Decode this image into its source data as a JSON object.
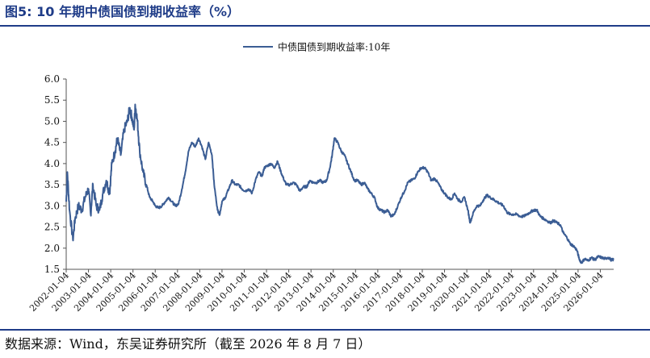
{
  "title": "图5:  10 年期中债国债到期收益率（%）",
  "source": "数据来源：Wind，东吴证券研究所（截至 2026 年 8 月 7 日）",
  "colors": {
    "accent": "#1f3c88",
    "series": "#3b5d94",
    "text": "#111111"
  },
  "chart_data": {
    "type": "line",
    "title": "",
    "xlabel": "",
    "ylabel": "",
    "ylim": [
      1.5,
      6.0
    ],
    "y_ticks": [
      "6.0",
      "5.5",
      "5.0",
      "4.5",
      "4.0",
      "3.5",
      "3.0",
      "2.5",
      "2.0",
      "1.5"
    ],
    "x_range": [
      2002.0,
      2026.6
    ],
    "x_ticks": [
      "2002-01-04",
      "2003-01-04",
      "2004-01-04",
      "2005-01-04",
      "2006-01-04",
      "2007-01-04",
      "2008-01-04",
      "2009-01-04",
      "2010-01-04",
      "2011-01-04",
      "2012-01-04",
      "2013-01-04",
      "2014-01-04",
      "2015-01-04",
      "2016-01-04",
      "2017-01-04",
      "2018-01-04",
      "2019-01-04",
      "2020-01-04",
      "2021-01-04",
      "2022-01-04",
      "2023-01-04",
      "2024-01-04",
      "2025-01-04",
      "2026-01-04"
    ],
    "grid": false,
    "legend": "top-center",
    "series": [
      {
        "name": "中债国债到期收益率:10年",
        "x": [
          2002.0,
          2002.05,
          2002.15,
          2002.3,
          2002.4,
          2002.55,
          2002.7,
          2002.85,
          2003.0,
          2003.1,
          2003.2,
          2003.35,
          2003.5,
          2003.65,
          2003.8,
          2003.95,
          2004.05,
          2004.2,
          2004.3,
          2004.45,
          2004.6,
          2004.75,
          2004.85,
          2004.95,
          2005.05,
          2005.1,
          2005.2,
          2005.3,
          2005.45,
          2005.6,
          2005.75,
          2005.9,
          2006.0,
          2006.15,
          2006.3,
          2006.45,
          2006.6,
          2006.75,
          2006.9,
          2007.05,
          2007.2,
          2007.35,
          2007.5,
          2007.65,
          2007.8,
          2007.95,
          2008.1,
          2008.25,
          2008.4,
          2008.55,
          2008.65,
          2008.8,
          2008.9,
          2009.0,
          2009.15,
          2009.3,
          2009.45,
          2009.6,
          2009.75,
          2009.9,
          2010.05,
          2010.2,
          2010.35,
          2010.5,
          2010.65,
          2010.8,
          2010.9,
          2011.05,
          2011.2,
          2011.35,
          2011.5,
          2011.65,
          2011.8,
          2011.9,
          2012.05,
          2012.2,
          2012.35,
          2012.5,
          2012.65,
          2012.8,
          2012.95,
          2013.1,
          2013.25,
          2013.4,
          2013.55,
          2013.7,
          2013.85,
          2013.95,
          2014.05,
          2014.2,
          2014.35,
          2014.5,
          2014.65,
          2014.8,
          2014.95,
          2015.1,
          2015.25,
          2015.4,
          2015.55,
          2015.7,
          2015.85,
          2016.0,
          2016.15,
          2016.3,
          2016.45,
          2016.6,
          2016.75,
          2016.9,
          2017.05,
          2017.2,
          2017.35,
          2017.5,
          2017.65,
          2017.8,
          2017.95,
          2018.1,
          2018.25,
          2018.4,
          2018.55,
          2018.7,
          2018.85,
          2019.0,
          2019.15,
          2019.3,
          2019.45,
          2019.6,
          2019.75,
          2019.9,
          2020.05,
          2020.15,
          2020.3,
          2020.45,
          2020.6,
          2020.75,
          2020.9,
          2021.05,
          2021.2,
          2021.35,
          2021.5,
          2021.65,
          2021.8,
          2021.95,
          2022.1,
          2022.25,
          2022.4,
          2022.55,
          2022.7,
          2022.85,
          2023.0,
          2023.15,
          2023.3,
          2023.45,
          2023.6,
          2023.75,
          2023.9,
          2024.05,
          2024.2,
          2024.35,
          2024.5,
          2024.65,
          2024.8,
          2024.95,
          2025.05,
          2025.15,
          2025.3,
          2025.45,
          2025.6,
          2025.75,
          2025.9,
          2026.05,
          2026.2,
          2026.35,
          2026.5,
          2026.6
        ],
        "y": [
          3.1,
          3.8,
          2.9,
          2.2,
          2.7,
          3.0,
          2.9,
          3.2,
          3.4,
          2.8,
          3.5,
          3.0,
          2.9,
          3.3,
          3.6,
          3.3,
          4.0,
          4.3,
          4.6,
          4.2,
          4.8,
          5.0,
          5.3,
          5.1,
          4.8,
          5.4,
          5.0,
          4.3,
          3.8,
          3.5,
          3.2,
          3.1,
          3.0,
          2.95,
          3.0,
          3.1,
          3.2,
          3.1,
          3.0,
          3.05,
          3.4,
          3.8,
          4.3,
          4.5,
          4.4,
          4.6,
          4.4,
          4.1,
          4.5,
          4.2,
          3.5,
          2.9,
          2.8,
          3.1,
          3.2,
          3.4,
          3.6,
          3.5,
          3.5,
          3.4,
          3.35,
          3.4,
          3.3,
          3.6,
          3.8,
          3.7,
          3.9,
          3.95,
          4.0,
          3.9,
          4.05,
          3.8,
          3.6,
          3.5,
          3.5,
          3.55,
          3.5,
          3.35,
          3.45,
          3.45,
          3.6,
          3.55,
          3.55,
          3.6,
          3.55,
          3.6,
          3.9,
          4.2,
          4.6,
          4.5,
          4.3,
          4.2,
          4.0,
          3.8,
          3.6,
          3.6,
          3.5,
          3.55,
          3.4,
          3.3,
          3.2,
          2.95,
          2.9,
          2.85,
          2.9,
          2.75,
          2.8,
          3.0,
          3.2,
          3.35,
          3.55,
          3.6,
          3.65,
          3.8,
          3.9,
          3.9,
          3.8,
          3.6,
          3.65,
          3.55,
          3.4,
          3.3,
          3.2,
          3.15,
          3.3,
          3.15,
          3.1,
          3.2,
          2.9,
          2.6,
          2.85,
          3.0,
          3.0,
          3.15,
          3.25,
          3.2,
          3.15,
          3.1,
          3.05,
          3.0,
          2.85,
          2.8,
          2.8,
          2.8,
          2.75,
          2.75,
          2.8,
          2.85,
          2.9,
          2.9,
          2.75,
          2.7,
          2.65,
          2.6,
          2.65,
          2.6,
          2.55,
          2.35,
          2.25,
          2.1,
          2.05,
          1.95,
          1.75,
          1.65,
          1.75,
          1.7,
          1.78,
          1.72,
          1.8,
          1.78,
          1.75,
          1.78,
          1.72,
          1.73
        ]
      }
    ]
  }
}
